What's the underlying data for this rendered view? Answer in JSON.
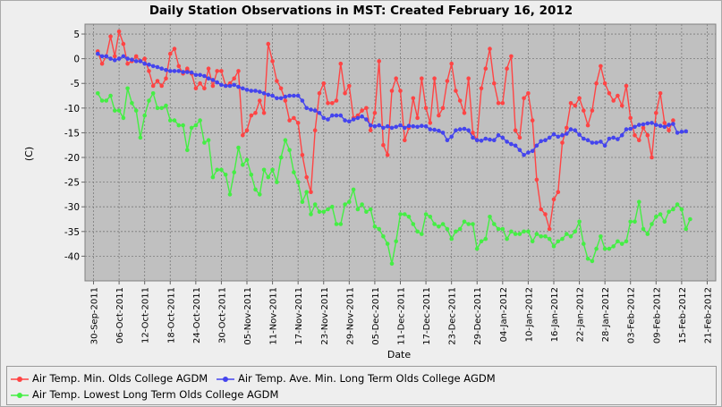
{
  "chart_data": {
    "type": "line",
    "title": "Daily Station Observations in MST: Created February 16, 2012",
    "xlabel": "Date",
    "ylabel": "(C)",
    "ylim": [
      -45,
      7
    ],
    "y_ticks": [
      5,
      0,
      -5,
      -10,
      -15,
      -20,
      -25,
      -30,
      -35,
      -40
    ],
    "x_ticks": [
      "30-Sep-2011",
      "06-Oct-2011",
      "12-Oct-2011",
      "18-Oct-2011",
      "24-Oct-2011",
      "30-Oct-2011",
      "05-Nov-2011",
      "11-Nov-2011",
      "17-Nov-2011",
      "23-Nov-2011",
      "29-Nov-2011",
      "05-Dec-2011",
      "11-Dec-2011",
      "17-Dec-2011",
      "23-Dec-2011",
      "29-Dec-2011",
      "04-Jan-2012",
      "10-Jan-2012",
      "16-Jan-2012",
      "22-Jan-2012",
      "28-Jan-2012",
      "03-Feb-2012",
      "09-Feb-2012",
      "15-Feb-2012",
      "21-Feb-2012"
    ],
    "x_tick_days": [
      0,
      6,
      12,
      18,
      24,
      30,
      36,
      42,
      48,
      54,
      60,
      66,
      72,
      78,
      84,
      90,
      96,
      102,
      108,
      114,
      120,
      126,
      132,
      138,
      144
    ],
    "xlim_days": [
      -2,
      146
    ],
    "x_start_day": 1,
    "grid": true,
    "legend_position": "bottom",
    "series": [
      {
        "name": "Air Temp. Min. Olds College AGDM",
        "color": "#ff4444",
        "values": [
          1.5,
          -1,
          0.5,
          4.5,
          0.5,
          5.5,
          3,
          -1,
          -0.5,
          0.5,
          -0.5,
          0,
          -2.5,
          -5.5,
          -4.5,
          -5.5,
          -4,
          1,
          2,
          -1.5,
          -3,
          -2,
          -3,
          -6,
          -5,
          -6,
          -2,
          -5.5,
          -2.5,
          -2.5,
          -5.5,
          -5,
          -4,
          -2.5,
          -15.5,
          -14.5,
          -11.5,
          -11,
          -8.5,
          -11,
          3,
          -0.5,
          -4.5,
          -6,
          -8.5,
          -12.5,
          -12,
          -13,
          -19.5,
          -24,
          -27,
          -14.5,
          -7,
          -5,
          -9,
          -9,
          -8.5,
          -1,
          -7,
          -5.5,
          -12,
          -11.5,
          -10.5,
          -10,
          -14.5,
          -11,
          -0.5,
          -17.5,
          -19.5,
          -6.5,
          -4,
          -6.5,
          -16.5,
          -14,
          -8,
          -12,
          -4,
          -10,
          -13,
          -4,
          -11.5,
          -10,
          -4.5,
          -1,
          -6.5,
          -8.5,
          -11,
          -4,
          -15,
          -16.5,
          -6,
          -2,
          2,
          -5,
          -9,
          -9,
          -2,
          0.5,
          -14.5,
          -16,
          -8,
          -7,
          -12.5,
          -24.5,
          -30.5,
          -31.5,
          -34.5,
          -28.5,
          -27,
          -17,
          -14,
          -9,
          -9.5,
          -8,
          -10.5,
          -13.5,
          -10.5,
          -5,
          -1.5,
          -5,
          -7,
          -8.5,
          -7.5,
          -9.5,
          -5.5,
          -12,
          -15.5,
          -16.5,
          -14,
          -15.5,
          -20,
          -11,
          -7,
          -13,
          -14.5,
          -12.5
        ]
      },
      {
        "name": "Air Temp. Ave. Min. Long Term Olds College AGDM",
        "color": "#4444ee",
        "values": [
          1,
          0.5,
          0.5,
          0,
          -0.3,
          0,
          0.5,
          0,
          -0.2,
          -0.5,
          -0.5,
          -1,
          -1.2,
          -1.5,
          -1.7,
          -2,
          -2.3,
          -2.5,
          -2.5,
          -2.5,
          -2.7,
          -2.7,
          -2.8,
          -3.3,
          -3.3,
          -3.5,
          -4,
          -4.3,
          -4.8,
          -5.3,
          -5.5,
          -5.5,
          -5.3,
          -5.7,
          -6,
          -6.3,
          -6.5,
          -6.5,
          -6.7,
          -7,
          -7.3,
          -7.5,
          -8,
          -8,
          -7.7,
          -7.5,
          -7.5,
          -7.5,
          -8.5,
          -10,
          -10.3,
          -10.5,
          -11,
          -12,
          -12.3,
          -11.5,
          -11.5,
          -11.5,
          -12.5,
          -12.7,
          -12.3,
          -12,
          -11.7,
          -12.3,
          -13.5,
          -13.7,
          -13.5,
          -14,
          -13.7,
          -14,
          -13.8,
          -13.5,
          -14,
          -13.6,
          -13.7,
          -13.8,
          -13.6,
          -13.7,
          -14.3,
          -14.4,
          -14.6,
          -15,
          -16.5,
          -15.8,
          -14.5,
          -14.3,
          -14.2,
          -14.5,
          -16,
          -16.5,
          -16.6,
          -16.2,
          -16.4,
          -16.5,
          -15.5,
          -16,
          -16.8,
          -17.3,
          -17.6,
          -18.5,
          -19.5,
          -19,
          -18.7,
          -17.6,
          -16.7,
          -16.5,
          -16,
          -15.3,
          -15.8,
          -15.5,
          -15.2,
          -14.3,
          -14.5,
          -15.4,
          -16.2,
          -16.5,
          -17,
          -17,
          -16.8,
          -17.6,
          -16.2,
          -16,
          -16.3,
          -15.5,
          -14.3,
          -14.2,
          -13.8,
          -13.4,
          -13.3,
          -13.1,
          -13,
          -13.4,
          -13.6,
          -13.8,
          -13.4,
          -13.2,
          -15,
          -14.8,
          -14.7
        ]
      },
      {
        "name": "Air Temp. Lowest Long Term Olds College AGDM",
        "color": "#44ee44",
        "values": [
          -7,
          -8.5,
          -8.5,
          -7.5,
          -10.5,
          -10.5,
          -12,
          -6,
          -9,
          -10.5,
          -16,
          -11.5,
          -8.5,
          -7,
          -10,
          -10,
          -9.5,
          -12.5,
          -12.5,
          -13.5,
          -13.5,
          -18.5,
          -14,
          -13.5,
          -12.5,
          -17,
          -16.5,
          -24,
          -22.5,
          -22.5,
          -23.5,
          -27.5,
          -23,
          -18,
          -21.5,
          -20.5,
          -23.5,
          -26.5,
          -27.5,
          -22.5,
          -24,
          -22.5,
          -25,
          -20,
          -16.5,
          -18.5,
          -23,
          -25,
          -29,
          -27,
          -31.5,
          -29.5,
          -31,
          -31,
          -30.5,
          -30,
          -33.5,
          -33.5,
          -29.5,
          -29,
          -26.5,
          -30.5,
          -29.5,
          -31,
          -30.5,
          -34,
          -34.5,
          -36,
          -37.5,
          -41.5,
          -37,
          -31.5,
          -31.5,
          -32,
          -33.5,
          -35,
          -35.5,
          -31.5,
          -32,
          -33.5,
          -34,
          -33.5,
          -34.5,
          -36.5,
          -35,
          -34.5,
          -33,
          -33.5,
          -33.5,
          -38.5,
          -37,
          -36.5,
          -32,
          -33.5,
          -34.5,
          -34.5,
          -36.5,
          -35,
          -35.5,
          -35.5,
          -35,
          -35,
          -37,
          -35.5,
          -36,
          -36,
          -36.5,
          -38,
          -37,
          -36.5,
          -35.5,
          -36,
          -35,
          -33,
          -37.5,
          -40.5,
          -41,
          -38.5,
          -36,
          -38.5,
          -38.5,
          -38,
          -37,
          -37.5,
          -37,
          -33,
          -33,
          -29,
          -34.5,
          -35.5,
          -33.5,
          -32,
          -31.5,
          -33,
          -31,
          -30.5,
          -29.5,
          -30.5,
          -34.5,
          -32.5
        ]
      }
    ]
  }
}
